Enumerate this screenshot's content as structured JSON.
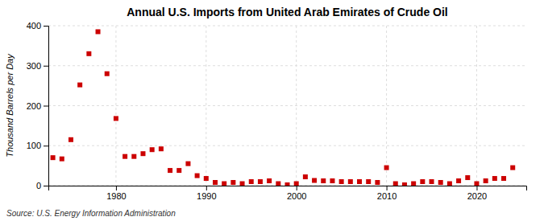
{
  "chart_data": {
    "type": "scatter",
    "title": "Annual U.S. Imports from United Arab Emirates of Crude Oil",
    "ylabel": "Thousand Barrels per Day",
    "source": "Source: U.S. Energy Information Administration",
    "x": [
      1973,
      1974,
      1975,
      1976,
      1977,
      1978,
      1979,
      1980,
      1981,
      1982,
      1983,
      1984,
      1985,
      1986,
      1987,
      1988,
      1989,
      1990,
      1991,
      1992,
      1993,
      1994,
      1995,
      1996,
      1997,
      1998,
      1999,
      2000,
      2001,
      2002,
      2003,
      2004,
      2005,
      2006,
      2007,
      2008,
      2009,
      2010,
      2011,
      2012,
      2013,
      2014,
      2015,
      2016,
      2017,
      2018,
      2019,
      2020,
      2021,
      2022,
      2023,
      2024
    ],
    "values": [
      70,
      67,
      115,
      252,
      330,
      385,
      280,
      168,
      73,
      73,
      80,
      90,
      92,
      38,
      38,
      55,
      25,
      18,
      8,
      5,
      8,
      5,
      10,
      10,
      12,
      5,
      2,
      5,
      22,
      13,
      12,
      12,
      10,
      10,
      10,
      10,
      8,
      45,
      5,
      2,
      5,
      10,
      10,
      8,
      5,
      12,
      20,
      5,
      12,
      18,
      18,
      45
    ],
    "color": "#cc0000",
    "marker": "square",
    "xlim": [
      1972.5,
      2025.5
    ],
    "xticks": [
      1980,
      1990,
      2000,
      2010,
      2020
    ],
    "ylim": [
      0,
      400
    ],
    "yticks": [
      0,
      100,
      200,
      300,
      400
    ],
    "grid": true
  }
}
